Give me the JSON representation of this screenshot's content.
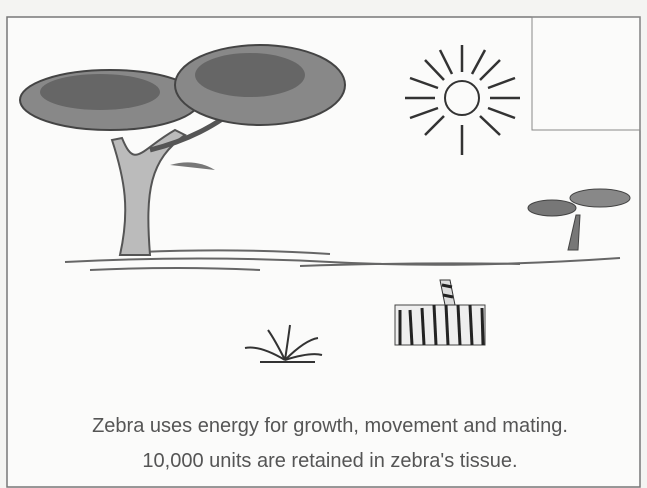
{
  "caption": {
    "line1": "Zebra uses energy for growth, movement and mating.",
    "line2": "10,000 units are retained in zebra's tissue."
  }
}
